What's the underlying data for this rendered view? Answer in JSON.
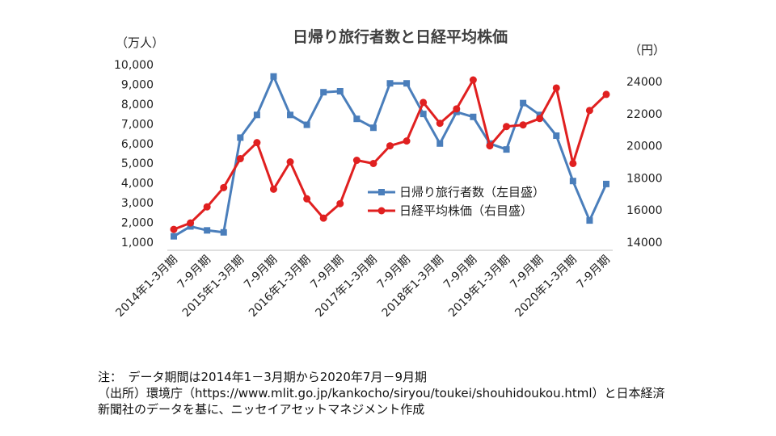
{
  "chart_data": {
    "type": "line",
    "title": "日帰り旅行者数と日経平均株価",
    "y_left_unit": "（万人）",
    "y_right_unit": "（円）",
    "y_left_ticks": [
      "1,000",
      "2,000",
      "3,000",
      "4,000",
      "5,000",
      "6,000",
      "7,000",
      "8,000",
      "9,000",
      "10,000"
    ],
    "y_right_ticks": [
      "14000",
      "16000",
      "18000",
      "20000",
      "22000",
      "24000"
    ],
    "y_left_range": [
      1000,
      10000
    ],
    "y_right_range": [
      14000,
      24000
    ],
    "x_tick_labels": [
      "2014年1-3月期",
      "7-9月期",
      "2015年1-3月期",
      "7-9月期",
      "2016年1-3月期",
      "7-9月期",
      "2017年1-3月期",
      "7-9月期",
      "2018年1-3月期",
      "7-9月期",
      "2019年1-3月期",
      "7-9月期",
      "2020年1-3月期",
      "7-9月期"
    ],
    "x": [
      "2014Q1",
      "2014Q2",
      "2014Q3",
      "2014Q4",
      "2015Q1",
      "2015Q2",
      "2015Q3",
      "2015Q4",
      "2016Q1",
      "2016Q2",
      "2016Q3",
      "2016Q4",
      "2017Q1",
      "2017Q2",
      "2017Q3",
      "2017Q4",
      "2018Q1",
      "2018Q2",
      "2018Q3",
      "2018Q4",
      "2019Q1",
      "2019Q2",
      "2019Q3",
      "2019Q4",
      "2020Q1",
      "2020Q2",
      "2020Q3"
    ],
    "legend_position": "center-right",
    "grid": false,
    "series": [
      {
        "name": "日帰り旅行者数（左目盛）",
        "axis": "left",
        "color": "#4a7ebb",
        "marker": "square",
        "values": [
          1300,
          1800,
          1600,
          1500,
          6300,
          7450,
          9400,
          7450,
          6950,
          8600,
          8650,
          7250,
          6800,
          9050,
          9050,
          7500,
          6000,
          7600,
          7350,
          6000,
          5700,
          8050,
          7450,
          6400,
          4100,
          2100,
          3950
        ]
      },
      {
        "name": "日経平均株価（右目盛）",
        "axis": "right",
        "color": "#e02020",
        "marker": "circle",
        "values": [
          14800,
          15200,
          16200,
          17400,
          19200,
          20200,
          17300,
          19000,
          16700,
          15500,
          16400,
          19100,
          18900,
          20000,
          20300,
          22700,
          21400,
          22300,
          24100,
          20000,
          21200,
          21300,
          21700,
          23600,
          18900,
          22200,
          23200
        ]
      }
    ]
  },
  "notes": {
    "line1": "注：　データ期間は2014年1－3月期から2020年7月－9月期",
    "line2": "（出所）環境庁（https://www.mlit.go.jp/kankocho/siryou/toukei/shouhidoukou.html）と日本経済",
    "line3": "新聞社のデータを基に、ニッセイアセットマネジメント作成"
  }
}
